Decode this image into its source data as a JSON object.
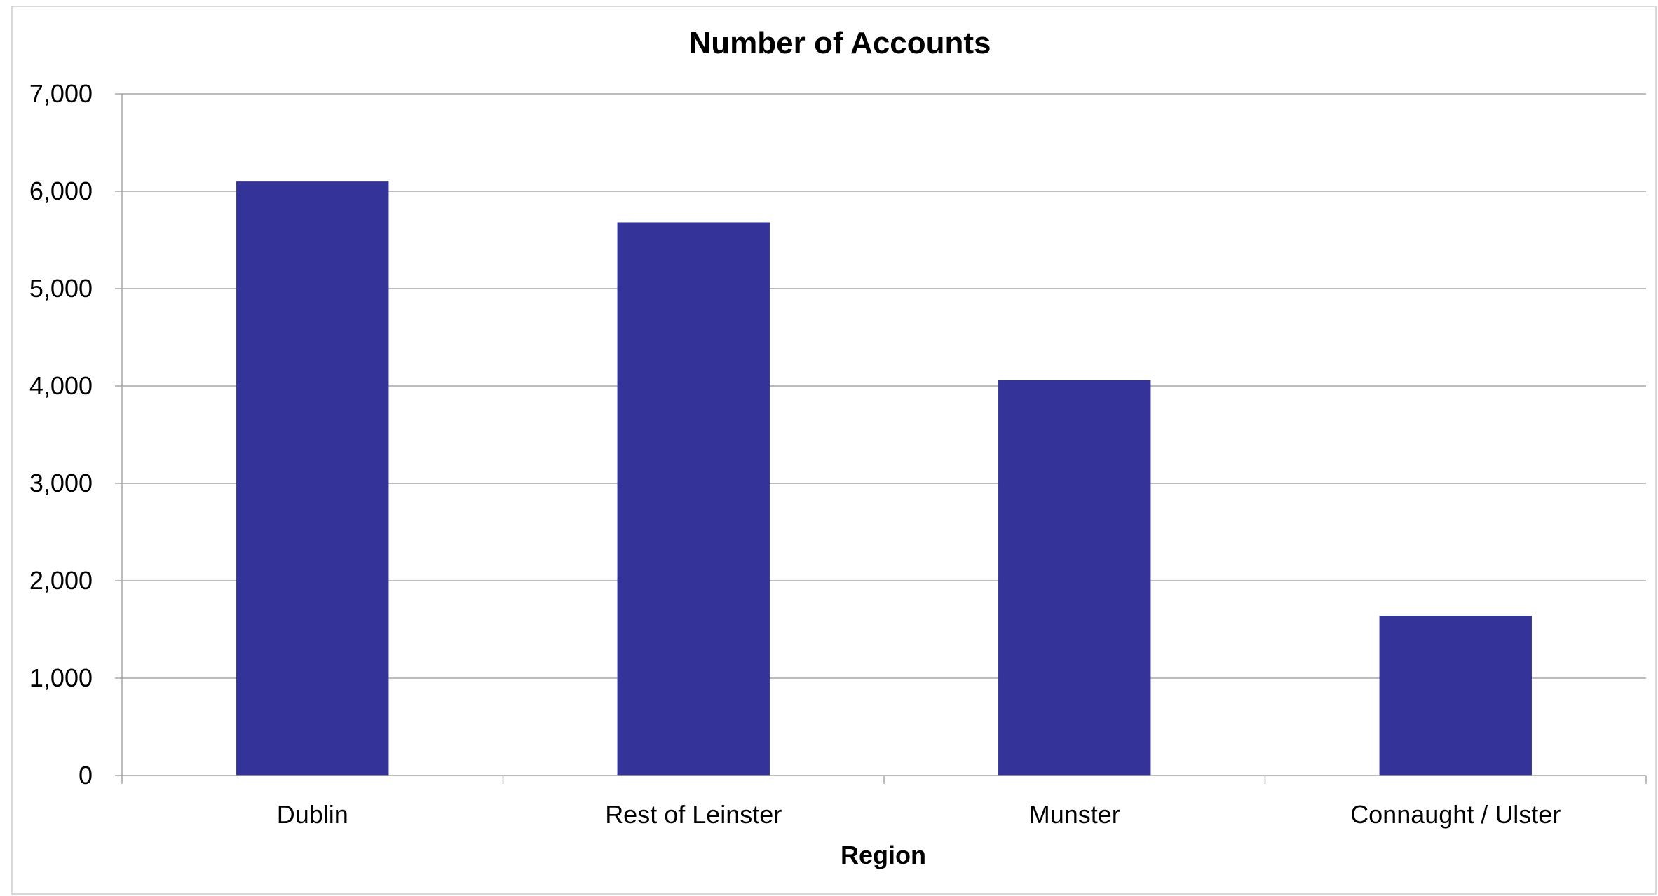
{
  "chart_data": {
    "type": "bar",
    "title": "Number of Accounts",
    "xlabel": "Region",
    "ylabel": "",
    "categories": [
      "Dublin",
      "Rest of Leinster",
      "Munster",
      "Connaught / Ulster"
    ],
    "values": [
      6100,
      5680,
      4060,
      1640
    ],
    "ylim": [
      0,
      7000
    ],
    "yticks": [
      0,
      1000,
      2000,
      3000,
      4000,
      5000,
      6000,
      7000
    ],
    "ytick_labels": [
      "0",
      "1,000",
      "2,000",
      "3,000",
      "4,000",
      "5,000",
      "6,000",
      "7,000"
    ],
    "grid": true,
    "legend": "none",
    "bar_color": "#333399",
    "grid_color": "#a6a6a6"
  }
}
